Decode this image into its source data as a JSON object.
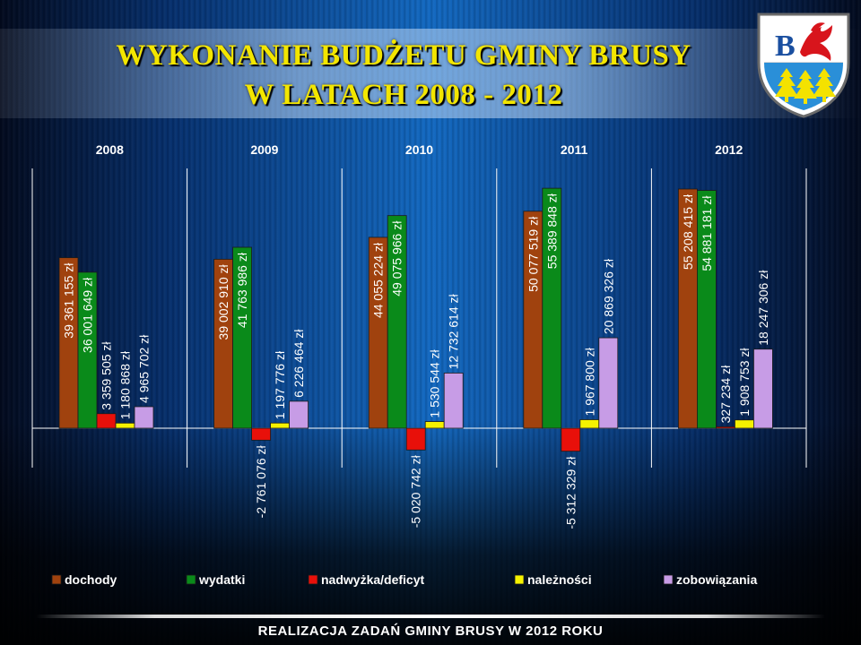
{
  "slide": {
    "title_line1": "WYKONANIE BUDŻETU GMINY BRUSY",
    "title_line2": "W LATACH 2008 - 2012",
    "footer": "REALIZACJA ZADAŃ GMINY BRUSY W 2012 ROKU",
    "crest_icon": "coat-of-arms-icon"
  },
  "chart_data": {
    "type": "bar",
    "categories": [
      "2008",
      "2009",
      "2010",
      "2011",
      "2012"
    ],
    "series": [
      {
        "name": "dochody",
        "color": "#a0420e",
        "values": [
          39361155,
          39002910,
          44055224,
          50077519,
          55208415
        ],
        "labels": [
          "39 361 155 zł",
          "39 002 910 zł",
          "44 055 224 zł",
          "50 077 519 zł",
          "55 208 415 zł"
        ]
      },
      {
        "name": "wydatki",
        "color": "#0a8a1a",
        "values": [
          36001649,
          41763986,
          49075966,
          55389848,
          54881181
        ],
        "labels": [
          "36 001 649 zł",
          "41 763 986 zł",
          "49 075 966 zł",
          "55 389 848 zł",
          "54 881 181 zł"
        ]
      },
      {
        "name": "nadwyżka/deficyt",
        "color": "#e8100a",
        "values": [
          3359505,
          -2761076,
          -5020742,
          -5312329,
          327234
        ],
        "labels": [
          "3 359 505 zł",
          "-2 761 076 zł",
          "-5 020 742 zł",
          "-5 312 329 zł",
          "327 234 zł"
        ]
      },
      {
        "name": "należności",
        "color": "#f5f200",
        "values": [
          1180868,
          1197776,
          1530544,
          1967800,
          1908753
        ],
        "labels": [
          "1 180 868 zł",
          "1 197 776 zł",
          "1 530 544 zł",
          "1 967 800 zł",
          "1 908 753 zł"
        ]
      },
      {
        "name": "zobowiązania",
        "color": "#c79ce6",
        "values": [
          4965702,
          6226464,
          12732614,
          20869326,
          18247306
        ],
        "labels": [
          "4 965 702 zł",
          "6 226 464 zł",
          "12 732 614 zł",
          "20 869 326 zł",
          "18 247 306 zł"
        ]
      }
    ],
    "legend_position": "bottom",
    "grid": false,
    "ylim": [
      -20000000,
      60000000
    ]
  }
}
